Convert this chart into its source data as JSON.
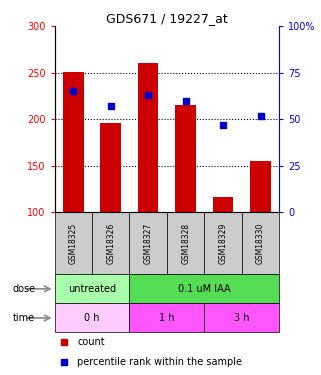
{
  "title": "GDS671 / 19227_at",
  "samples": [
    "GSM18325",
    "GSM18326",
    "GSM18327",
    "GSM18328",
    "GSM18329",
    "GSM18330"
  ],
  "bar_values": [
    251,
    196,
    261,
    215,
    117,
    155
  ],
  "bar_base": 100,
  "scatter_pct": [
    65,
    57,
    63,
    60,
    47,
    52
  ],
  "ylim_left": [
    100,
    300
  ],
  "ylim_right": [
    0,
    100
  ],
  "yticks_left": [
    100,
    150,
    200,
    250,
    300
  ],
  "yticks_right": [
    0,
    25,
    50,
    75,
    100
  ],
  "bar_color": "#cc0000",
  "scatter_color": "#0000cc",
  "dose_groups": [
    {
      "label": "untreated",
      "start": 0,
      "end": 2,
      "color": "#aaffaa"
    },
    {
      "label": "0.1 uM IAA",
      "start": 2,
      "end": 6,
      "color": "#55dd55"
    }
  ],
  "time_groups": [
    {
      "label": "0 h",
      "start": 0,
      "end": 2,
      "color": "#ffccff"
    },
    {
      "label": "1 h",
      "start": 2,
      "end": 4,
      "color": "#ff55ff"
    },
    {
      "label": "3 h",
      "start": 4,
      "end": 6,
      "color": "#ff55ff"
    }
  ],
  "background_color": "#ffffff",
  "label_bg": "#cccccc",
  "grid_linestyle": ":",
  "grid_color": "#000000",
  "grid_linewidth": 0.8
}
